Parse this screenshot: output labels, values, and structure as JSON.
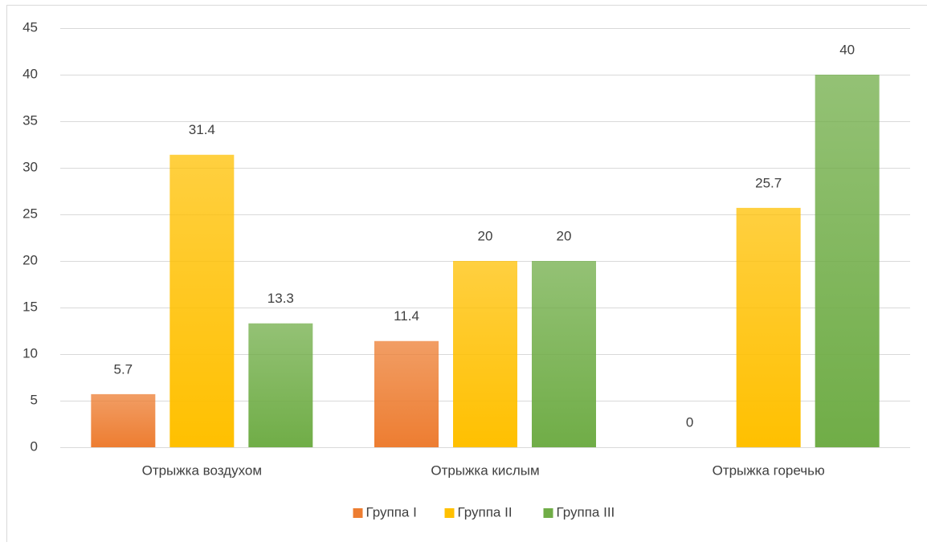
{
  "chart_data": {
    "type": "bar",
    "categories": [
      "Отрыжка воздухом",
      "Отрыжка кислым",
      "Отрыжка горечью"
    ],
    "series": [
      {
        "name": "Группа I",
        "color": "#ed7d31",
        "values": [
          5.7,
          11.4,
          0
        ]
      },
      {
        "name": "Группа II",
        "color": "#ffc000",
        "values": [
          31.4,
          20,
          25.7
        ]
      },
      {
        "name": "Группа III",
        "color": "#70ad47",
        "values": [
          13.3,
          20,
          40
        ]
      }
    ],
    "ylim": [
      0,
      45
    ],
    "yticks": [
      0,
      5,
      10,
      15,
      20,
      25,
      30,
      35,
      40,
      45
    ],
    "grid": true,
    "legend": "bottom"
  }
}
